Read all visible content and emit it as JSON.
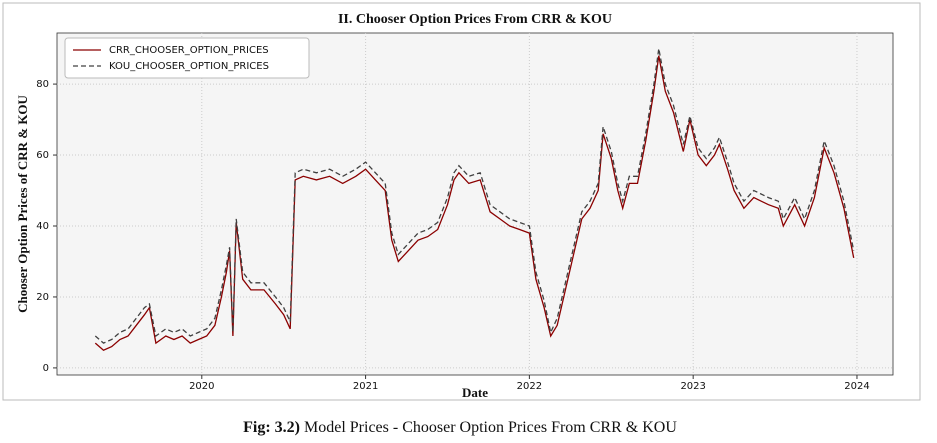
{
  "chart_data": {
    "type": "line",
    "title": "II. Chooser Option Prices From CRR & KOU",
    "xlabel": "Date",
    "ylabel": "Chooser Option Prices of CRR & KOU",
    "x": [
      2019.35,
      2019.4,
      2019.45,
      2019.5,
      2019.55,
      2019.6,
      2019.65,
      2019.68,
      2019.72,
      2019.78,
      2019.83,
      2019.88,
      2019.93,
      2019.98,
      2020.03,
      2020.08,
      2020.12,
      2020.15,
      2020.17,
      2020.19,
      2020.21,
      2020.25,
      2020.3,
      2020.38,
      2020.45,
      2020.5,
      2020.54,
      2020.57,
      2020.62,
      2020.7,
      2020.78,
      2020.86,
      2020.94,
      2021.0,
      2021.06,
      2021.12,
      2021.16,
      2021.2,
      2021.26,
      2021.32,
      2021.38,
      2021.44,
      2021.5,
      2021.54,
      2021.57,
      2021.63,
      2021.7,
      2021.76,
      2021.82,
      2021.88,
      2021.94,
      2022.0,
      2022.04,
      2022.09,
      2022.13,
      2022.17,
      2022.22,
      2022.27,
      2022.32,
      2022.37,
      2022.42,
      2022.45,
      2022.5,
      2022.54,
      2022.57,
      2022.61,
      2022.66,
      2022.71,
      2022.76,
      2022.79,
      2022.83,
      2022.88,
      2022.94,
      2022.98,
      2023.03,
      2023.08,
      2023.13,
      2023.16,
      2023.21,
      2023.25,
      2023.31,
      2023.37,
      2023.46,
      2023.52,
      2023.55,
      2023.62,
      2023.68,
      2023.74,
      2023.8,
      2023.86,
      2023.92,
      2023.98
    ],
    "series": [
      {
        "name": "CRR_CHOOSER_OPTION_PRICES",
        "color": "#8b0000",
        "line_style": "solid",
        "values": [
          7,
          5,
          6,
          8,
          9,
          12,
          15,
          17,
          7,
          9,
          8,
          9,
          7,
          8,
          9,
          12,
          20,
          27,
          33,
          9,
          41,
          25,
          22,
          22,
          18,
          15,
          11,
          53,
          54,
          53,
          54,
          52,
          54,
          56,
          53,
          50,
          36,
          30,
          33,
          36,
          37,
          39,
          46,
          53,
          55,
          52,
          53,
          44,
          42,
          40,
          39,
          38,
          25,
          17,
          9,
          12,
          22,
          32,
          42,
          45,
          50,
          66,
          59,
          50,
          45,
          52,
          52,
          64,
          78,
          88,
          78,
          72,
          61,
          70,
          60,
          57,
          60,
          63,
          56,
          50,
          45,
          48,
          46,
          45,
          40,
          46,
          40,
          48,
          62,
          55,
          45,
          31
        ]
      },
      {
        "name": "KOU_CHOOSER_OPTION_PRICES",
        "color": "#404040",
        "line_style": "dashed",
        "values": [
          9,
          7,
          8,
          10,
          11,
          14,
          17,
          18,
          9,
          11,
          10,
          11,
          9,
          10,
          11,
          14,
          22,
          29,
          34,
          10,
          42,
          27,
          24,
          24,
          20,
          17,
          13,
          55,
          56,
          55,
          56,
          54,
          56,
          58,
          55,
          52,
          38,
          32,
          35,
          38,
          39,
          41,
          48,
          55,
          57,
          54,
          55,
          46,
          44,
          42,
          41,
          40,
          27,
          19,
          10,
          14,
          24,
          34,
          44,
          47,
          52,
          68,
          61,
          52,
          47,
          54,
          54,
          66,
          80,
          90,
          80,
          74,
          63,
          71,
          62,
          59,
          62,
          65,
          58,
          52,
          47,
          50,
          48,
          47,
          42,
          48,
          42,
          50,
          64,
          57,
          47,
          33
        ]
      }
    ],
    "xlim": [
      2019.116,
      2024.22
    ],
    "xticks": [
      2020,
      2021,
      2022,
      2023,
      2024
    ],
    "ylim": [
      -2,
      94.4
    ],
    "yticks": [
      0,
      20,
      40,
      60,
      80
    ],
    "grid": true,
    "legend": "upper left"
  },
  "caption": {
    "label": "Fig: 3.2)",
    "text": "Model Prices - Chooser Option Prices From CRR & KOU"
  }
}
